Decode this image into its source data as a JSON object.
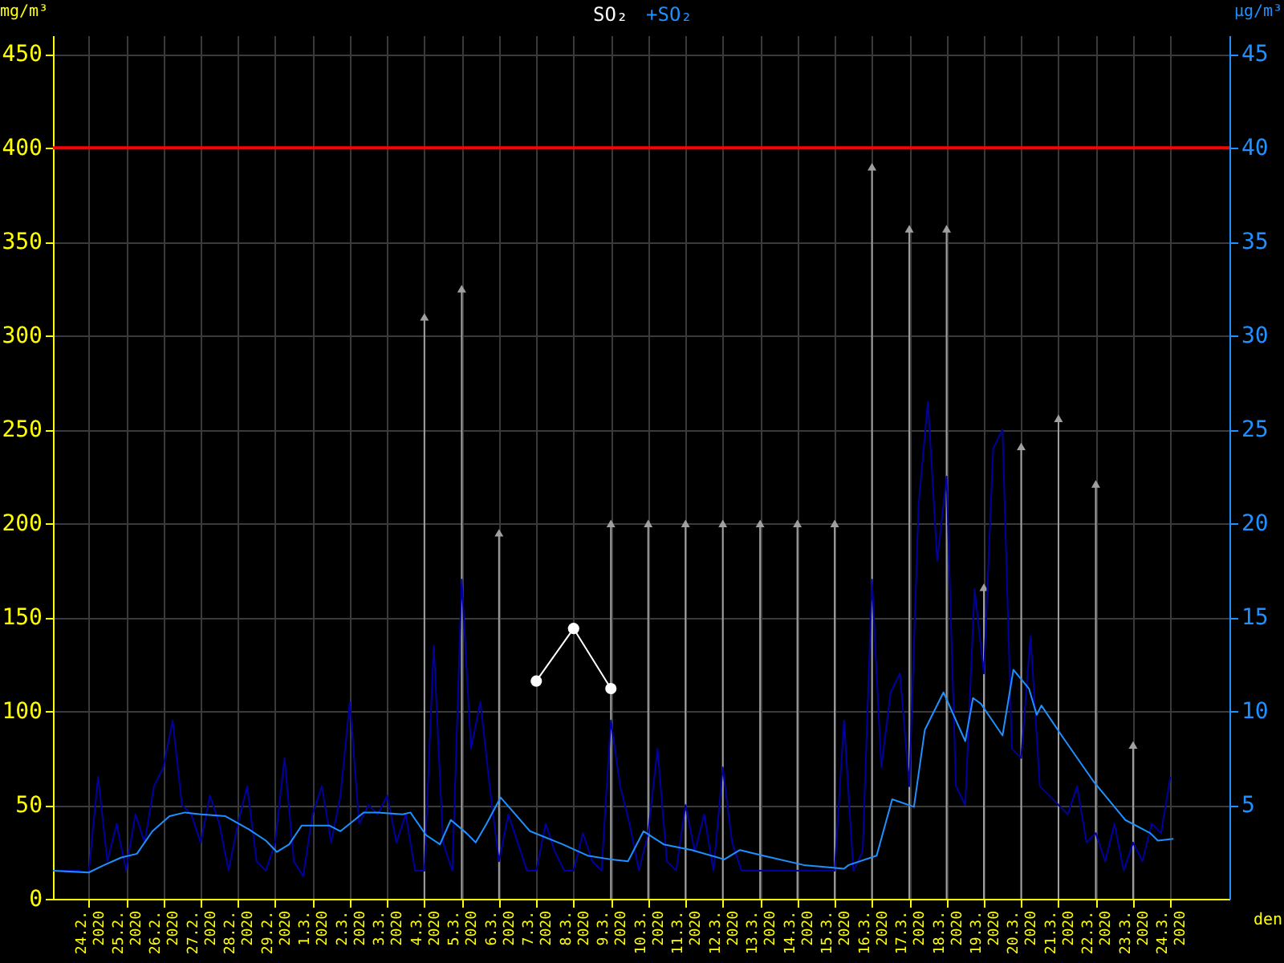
{
  "chart_data": {
    "type": "line",
    "xlabel": "den",
    "ylabel": "mg/m³",
    "y2label": "μg/m³",
    "grid": true,
    "legend": "top",
    "xlim": [
      "2020-02-23T01:00",
      "2020-03-25T14:00"
    ],
    "ylim": [
      0,
      460
    ],
    "yticks": [
      0,
      50,
      100,
      150,
      200,
      250,
      300,
      350,
      400,
      450
    ],
    "y2lim": [
      0,
      46
    ],
    "y2ticks": [
      5,
      10,
      15,
      20,
      25,
      30,
      35,
      40,
      45
    ],
    "xticks": [
      {
        "value": "2020-02-24",
        "label": "24.2.\n2020"
      },
      {
        "value": "2020-02-25",
        "label": "25.2.\n2020"
      },
      {
        "value": "2020-02-26",
        "label": "26.2.\n2020"
      },
      {
        "value": "2020-02-27",
        "label": "27.2.\n2020"
      },
      {
        "value": "2020-02-28",
        "label": "28.2.\n2020"
      },
      {
        "value": "2020-02-29",
        "label": "29.2.\n2020"
      },
      {
        "value": "2020-03-01",
        "label": "1.3.\n2020"
      },
      {
        "value": "2020-03-02",
        "label": "2.3.\n2020"
      },
      {
        "value": "2020-03-03",
        "label": "3.3.\n2020"
      },
      {
        "value": "2020-03-04",
        "label": "4.3.\n2020"
      },
      {
        "value": "2020-03-05",
        "label": "5.3.\n2020"
      },
      {
        "value": "2020-03-06",
        "label": "6.3.\n2020"
      },
      {
        "value": "2020-03-07",
        "label": "7.3.\n2020"
      },
      {
        "value": "2020-03-08",
        "label": "8.3.\n2020"
      },
      {
        "value": "2020-03-09",
        "label": "9.3.\n2020"
      },
      {
        "value": "2020-03-10",
        "label": "10.3.\n2020"
      },
      {
        "value": "2020-03-11",
        "label": "11.3.\n2020"
      },
      {
        "value": "2020-03-12",
        "label": "12.3.\n2020"
      },
      {
        "value": "2020-03-13",
        "label": "13.3.\n2020"
      },
      {
        "value": "2020-03-14",
        "label": "14.3.\n2020"
      },
      {
        "value": "2020-03-15",
        "label": "15.3.\n2020"
      },
      {
        "value": "2020-03-16",
        "label": "16.3.\n2020"
      },
      {
        "value": "2020-03-17",
        "label": "17.3.\n2020"
      },
      {
        "value": "2020-03-18",
        "label": "18.3.\n2020"
      },
      {
        "value": "2020-03-19",
        "label": "19.3.\n2020"
      },
      {
        "value": "2020-03-20",
        "label": "20.3.\n2020"
      },
      {
        "value": "2020-03-21",
        "label": "21.3.\n2020"
      },
      {
        "value": "2020-03-22",
        "label": "22.3.\n2020"
      },
      {
        "value": "2020-03-23",
        "label": "23.3.\n2020"
      },
      {
        "value": "2020-03-24",
        "label": "24.3.\n2020"
      }
    ],
    "ref_lines": [
      {
        "axis": "y",
        "value": 400,
        "color": "#ff0000"
      }
    ],
    "series": [
      {
        "axis": "y2",
        "color": "#0000a0",
        "x": [
          "2020-02-23T06:00",
          "2020-02-23T12:00",
          "2020-02-23T18:00",
          "2020-02-24T00:00",
          "2020-02-24T06:00",
          "2020-02-24T12:00",
          "2020-02-24T18:00",
          "2020-02-25T00:00",
          "2020-02-25T06:00",
          "2020-02-25T12:00",
          "2020-02-25T18:00",
          "2020-02-26T00:00",
          "2020-02-26T06:00",
          "2020-02-26T12:00",
          "2020-02-26T18:00",
          "2020-02-27T00:00",
          "2020-02-27T06:00",
          "2020-02-27T12:00",
          "2020-02-27T18:00",
          "2020-02-28T00:00",
          "2020-02-28T06:00",
          "2020-02-28T12:00",
          "2020-02-28T18:00",
          "2020-02-29T00:00",
          "2020-02-29T06:00",
          "2020-02-29T12:00",
          "2020-02-29T18:00",
          "2020-03-01T00:00",
          "2020-03-01T06:00",
          "2020-03-01T12:00",
          "2020-03-01T18:00",
          "2020-03-02T00:00",
          "2020-03-02T06:00",
          "2020-03-02T12:00",
          "2020-03-02T18:00",
          "2020-03-03T00:00",
          "2020-03-03T06:00",
          "2020-03-03T12:00",
          "2020-03-03T18:00",
          "2020-03-04T00:00",
          "2020-03-04T06:00",
          "2020-03-04T12:00",
          "2020-03-04T18:00",
          "2020-03-05T00:00",
          "2020-03-05T06:00",
          "2020-03-05T12:00",
          "2020-03-05T18:00",
          "2020-03-06T00:00",
          "2020-03-06T06:00",
          "2020-03-06T12:00",
          "2020-03-06T18:00",
          "2020-03-07T00:00",
          "2020-03-07T06:00",
          "2020-03-07T12:00",
          "2020-03-07T18:00",
          "2020-03-08T00:00",
          "2020-03-08T06:00",
          "2020-03-08T12:00",
          "2020-03-08T18:00",
          "2020-03-09T00:00",
          "2020-03-09T06:00",
          "2020-03-09T12:00",
          "2020-03-09T18:00",
          "2020-03-10T00:00",
          "2020-03-10T06:00",
          "2020-03-10T12:00",
          "2020-03-10T18:00",
          "2020-03-11T00:00",
          "2020-03-11T06:00",
          "2020-03-11T12:00",
          "2020-03-11T18:00",
          "2020-03-12T00:00",
          "2020-03-12T06:00",
          "2020-03-12T12:00",
          "2020-03-12T18:00",
          "2020-03-13T00:00",
          "2020-03-13T06:00",
          "2020-03-13T12:00",
          "2020-03-13T18:00",
          "2020-03-14T00:00",
          "2020-03-14T06:00",
          "2020-03-14T12:00",
          "2020-03-14T18:00",
          "2020-03-15T00:00",
          "2020-03-15T06:00",
          "2020-03-15T12:00",
          "2020-03-15T18:00",
          "2020-03-16T00:00",
          "2020-03-16T06:00",
          "2020-03-16T12:00",
          "2020-03-16T18:00",
          "2020-03-17T00:00",
          "2020-03-17T06:00",
          "2020-03-17T12:00",
          "2020-03-17T18:00",
          "2020-03-18T00:00",
          "2020-03-18T06:00",
          "2020-03-18T12:00",
          "2020-03-18T18:00",
          "2020-03-19T00:00",
          "2020-03-19T06:00",
          "2020-03-19T12:00",
          "2020-03-19T18:00",
          "2020-03-20T00:00",
          "2020-03-20T06:00",
          "2020-03-20T12:00",
          "2020-03-20T18:00",
          "2020-03-21T00:00",
          "2020-03-21T06:00",
          "2020-03-21T12:00",
          "2020-03-21T18:00",
          "2020-03-22T00:00",
          "2020-03-22T06:00",
          "2020-03-22T12:00",
          "2020-03-22T18:00",
          "2020-03-23T00:00",
          "2020-03-23T06:00",
          "2020-03-23T12:00",
          "2020-03-23T18:00",
          "2020-03-24T00:00"
        ],
        "values": [
          1.5,
          1.5,
          1.5,
          1.4,
          6.5,
          2,
          4,
          1.5,
          4.5,
          3,
          6,
          7,
          9.5,
          5,
          4.5,
          3,
          5.5,
          4,
          1.5,
          4,
          6,
          2,
          1.5,
          3,
          7.5,
          2,
          1.2,
          4.5,
          6,
          3,
          5.5,
          10.5,
          4,
          5,
          4.5,
          5.5,
          3,
          4.5,
          1.5,
          1.5,
          13.5,
          3,
          1.5,
          17,
          8,
          10.5,
          6,
          2,
          4.5,
          3,
          1.5,
          1.5,
          4,
          2.5,
          1.5,
          1.5,
          3.5,
          2,
          1.5,
          9.5,
          6,
          4,
          1.5,
          3.5,
          8,
          2,
          1.5,
          5,
          2.5,
          4.5,
          1.5,
          7,
          3,
          1.5,
          1.5,
          1.5,
          1.5,
          1.5,
          1.5,
          1.5,
          1.5,
          1.5,
          1.5,
          1.5,
          9.5,
          1.5,
          2.5,
          17,
          7,
          11,
          12,
          6,
          21,
          26.5,
          18,
          22.5,
          6,
          5,
          16.5,
          12,
          24,
          25,
          8,
          7.5,
          14,
          6,
          5.5,
          5,
          4.5,
          6,
          3,
          3.5,
          2,
          4,
          1.5,
          3,
          2,
          4,
          3.5,
          6.5
        ]
      },
      {
        "axis": "y2",
        "name": "+SO₂",
        "color": "#1e90ff",
        "x": [
          "2020-02-23T01:00",
          "2020-02-24T00:00",
          "2020-02-24T10:00",
          "2020-02-24T21:00",
          "2020-02-25T07:00",
          "2020-02-25T17:00",
          "2020-02-26T04:00",
          "2020-02-26T14:00",
          "2020-02-27T00:00",
          "2020-02-27T16:00",
          "2020-02-28T07:00",
          "2020-02-28T18:00",
          "2020-02-29T01:00",
          "2020-02-29T09:00",
          "2020-02-29T17:00",
          "2020-03-01T01:00",
          "2020-03-01T11:00",
          "2020-03-01T18:00",
          "2020-03-02T03:00",
          "2020-03-02T09:00",
          "2020-03-02T18:00",
          "2020-03-03T10:00",
          "2020-03-03T15:00",
          "2020-03-04T01:00",
          "2020-03-04T10:00",
          "2020-03-04T17:00",
          "2020-03-05T03:00",
          "2020-03-05T09:00",
          "2020-03-05T16:00",
          "2020-03-06T01:00",
          "2020-03-06T20:00",
          "2020-03-07T17:00",
          "2020-03-08T09:00",
          "2020-03-09T00:00",
          "2020-03-09T11:00",
          "2020-03-09T21:00",
          "2020-03-10T10:00",
          "2020-03-11T04:00",
          "2020-03-12T01:00",
          "2020-03-12T11:00",
          "2020-03-13T02:00",
          "2020-03-14T04:00",
          "2020-03-15T06:00",
          "2020-03-15T09:00",
          "2020-03-16T03:00",
          "2020-03-16T13:00",
          "2020-03-17T03:00",
          "2020-03-17T10:00",
          "2020-03-17T22:00",
          "2020-03-18T12:00",
          "2020-03-18T17:00",
          "2020-03-18T22:00",
          "2020-03-19T12:00",
          "2020-03-19T19:00",
          "2020-03-20T05:00",
          "2020-03-20T10:00",
          "2020-03-20T13:00",
          "2020-03-21T02:00",
          "2020-03-21T23:00",
          "2020-03-22T19:00",
          "2020-03-23T11:00",
          "2020-03-23T16:00",
          "2020-03-24T02:00"
        ],
        "values": [
          1.5,
          1.4,
          1.8,
          2.2,
          2.4,
          3.6,
          4.4,
          4.6,
          4.5,
          4.4,
          3.7,
          3.1,
          2.5,
          2.9,
          3.9,
          3.9,
          3.9,
          3.6,
          4.2,
          4.6,
          4.6,
          4.5,
          4.6,
          3.4,
          2.9,
          4.2,
          3.5,
          3.0,
          4.0,
          5.4,
          3.6,
          2.9,
          2.3,
          2.1,
          2.0,
          3.6,
          2.9,
          2.6,
          2.1,
          2.6,
          2.3,
          1.8,
          1.6,
          1.8,
          2.3,
          5.3,
          4.9,
          9.0,
          11.0,
          8.4,
          10.7,
          10.4,
          8.7,
          12.2,
          11.2,
          9.8,
          10.3,
          8.7,
          6.2,
          4.2,
          3.5,
          3.1,
          3.2
        ]
      },
      {
        "type": "lollipop",
        "axis": "y",
        "color": "#a0a0a0",
        "marker": "triangle",
        "x": [
          "2020-03-04",
          "2020-03-05",
          "2020-03-06",
          "2020-03-09",
          "2020-03-10",
          "2020-03-11",
          "2020-03-12",
          "2020-03-13",
          "2020-03-14",
          "2020-03-15",
          "2020-03-16",
          "2020-03-17",
          "2020-03-18",
          "2020-03-19",
          "2020-03-20",
          "2020-03-21",
          "2020-03-22",
          "2020-03-23"
        ],
        "values": [
          310,
          325,
          195,
          200,
          200,
          200,
          200,
          200,
          200,
          200,
          390,
          357,
          357,
          166,
          241,
          256,
          221,
          82
        ]
      },
      {
        "axis": "y",
        "name": "SO₂",
        "color": "#ffffff",
        "marker": "circle",
        "x": [
          "2020-03-07",
          "2020-03-08",
          "2020-03-09"
        ],
        "values": [
          116,
          144,
          112
        ]
      }
    ]
  }
}
